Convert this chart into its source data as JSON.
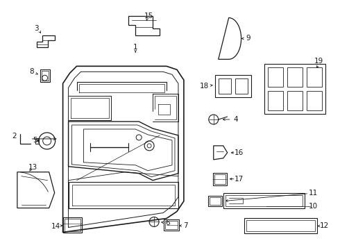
{
  "background_color": "#ffffff",
  "fig_width": 4.9,
  "fig_height": 3.6,
  "dpi": 100,
  "line_color": "#1a1a1a",
  "lw": 0.9
}
